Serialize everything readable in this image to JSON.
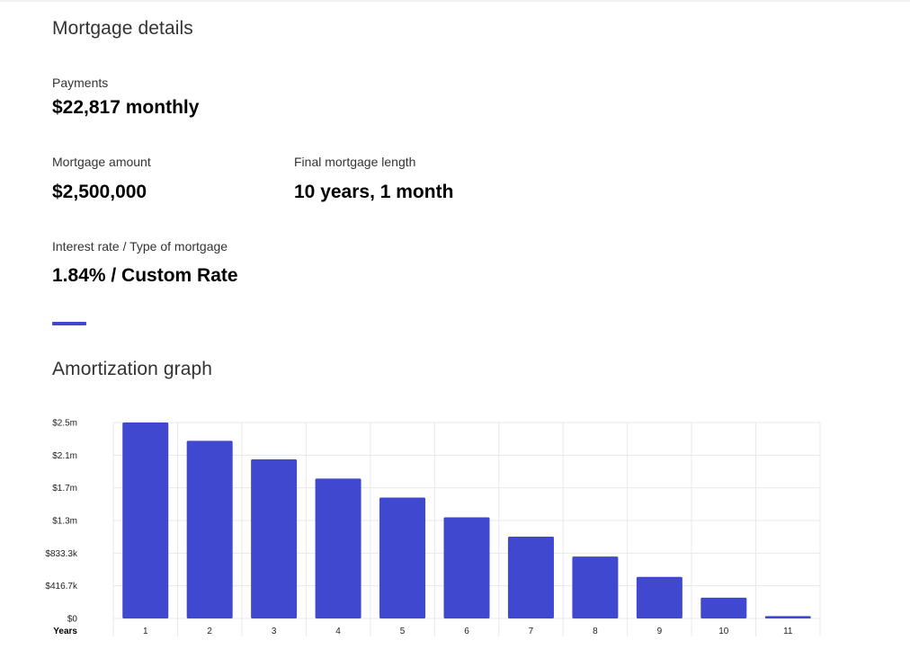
{
  "details": {
    "title": "Mortgage details",
    "payments": {
      "label": "Payments",
      "value": "$22,817 monthly"
    },
    "amount": {
      "label": "Mortgage amount",
      "value": "$2,500,000"
    },
    "length": {
      "label": "Final mortgage length",
      "value": "10 years, 1 month"
    },
    "rate": {
      "label": "Interest rate / Type of mortgage",
      "value": "1.84% / Custom Rate"
    }
  },
  "graph": {
    "title": "Amortization graph"
  },
  "colors": {
    "bar": "#4048cf",
    "divider": "#4048cf",
    "grid": "#e8e8ec"
  },
  "chart_data": {
    "type": "bar",
    "xlabel": "Years",
    "ylabel": "",
    "categories": [
      "1",
      "2",
      "3",
      "4",
      "5",
      "6",
      "7",
      "8",
      "9",
      "10",
      "11"
    ],
    "values": [
      2500000,
      2266000,
      2030000,
      1785000,
      1543000,
      1290000,
      1043000,
      790000,
      530000,
      265000,
      30000
    ],
    "yticks": [
      {
        "value": 0,
        "label": "$0"
      },
      {
        "value": 416700,
        "label": "$416.7k"
      },
      {
        "value": 833300,
        "label": "$833.3k"
      },
      {
        "value": 1250000,
        "label": "$1.3m"
      },
      {
        "value": 1666700,
        "label": "$1.7m"
      },
      {
        "value": 2083300,
        "label": "$2.1m"
      },
      {
        "value": 2500000,
        "label": "$2.5m"
      }
    ],
    "ylim": [
      0,
      2500000
    ],
    "grid": true
  }
}
